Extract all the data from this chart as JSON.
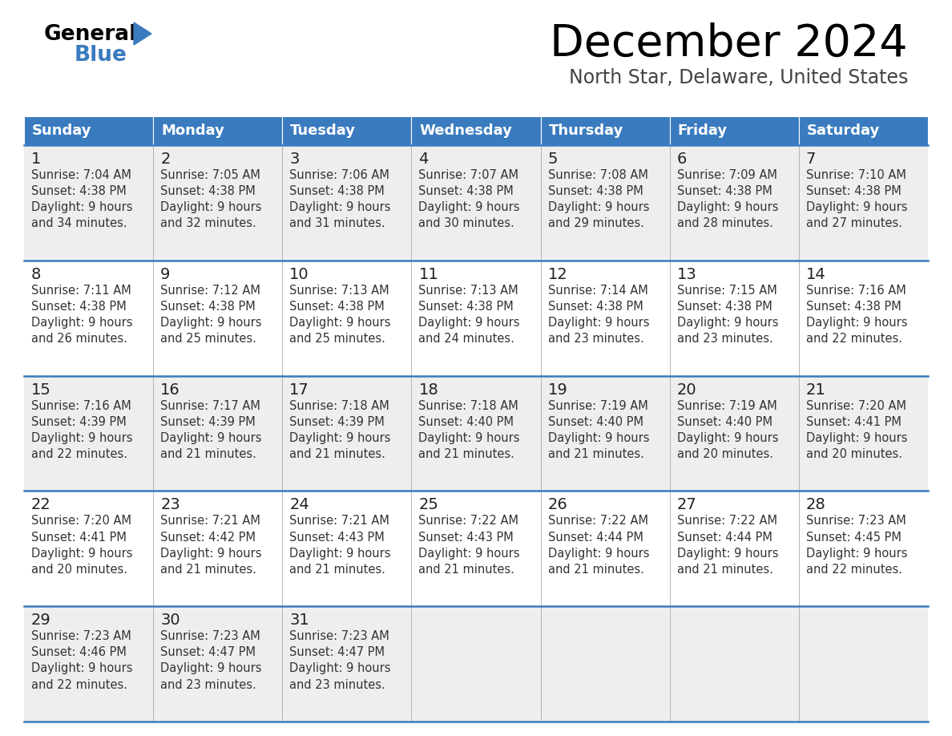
{
  "title": "December 2024",
  "subtitle": "North Star, Delaware, United States",
  "header_bg_color": "#3a7bbf",
  "header_text_color": "#ffffff",
  "cell_bg_color_odd": "#eeeeee",
  "cell_bg_color_even": "#ffffff",
  "grid_line_color": "#3a7bbf",
  "separator_line_color": "#aaaaaa",
  "days_of_week": [
    "Sunday",
    "Monday",
    "Tuesday",
    "Wednesday",
    "Thursday",
    "Friday",
    "Saturday"
  ],
  "weeks": [
    [
      {
        "day": 1,
        "sunrise": "7:04 AM",
        "sunset": "4:38 PM",
        "daylight": "9 hours and 34 minutes."
      },
      {
        "day": 2,
        "sunrise": "7:05 AM",
        "sunset": "4:38 PM",
        "daylight": "9 hours and 32 minutes."
      },
      {
        "day": 3,
        "sunrise": "7:06 AM",
        "sunset": "4:38 PM",
        "daylight": "9 hours and 31 minutes."
      },
      {
        "day": 4,
        "sunrise": "7:07 AM",
        "sunset": "4:38 PM",
        "daylight": "9 hours and 30 minutes."
      },
      {
        "day": 5,
        "sunrise": "7:08 AM",
        "sunset": "4:38 PM",
        "daylight": "9 hours and 29 minutes."
      },
      {
        "day": 6,
        "sunrise": "7:09 AM",
        "sunset": "4:38 PM",
        "daylight": "9 hours and 28 minutes."
      },
      {
        "day": 7,
        "sunrise": "7:10 AM",
        "sunset": "4:38 PM",
        "daylight": "9 hours and 27 minutes."
      }
    ],
    [
      {
        "day": 8,
        "sunrise": "7:11 AM",
        "sunset": "4:38 PM",
        "daylight": "9 hours and 26 minutes."
      },
      {
        "day": 9,
        "sunrise": "7:12 AM",
        "sunset": "4:38 PM",
        "daylight": "9 hours and 25 minutes."
      },
      {
        "day": 10,
        "sunrise": "7:13 AM",
        "sunset": "4:38 PM",
        "daylight": "9 hours and 25 minutes."
      },
      {
        "day": 11,
        "sunrise": "7:13 AM",
        "sunset": "4:38 PM",
        "daylight": "9 hours and 24 minutes."
      },
      {
        "day": 12,
        "sunrise": "7:14 AM",
        "sunset": "4:38 PM",
        "daylight": "9 hours and 23 minutes."
      },
      {
        "day": 13,
        "sunrise": "7:15 AM",
        "sunset": "4:38 PM",
        "daylight": "9 hours and 23 minutes."
      },
      {
        "day": 14,
        "sunrise": "7:16 AM",
        "sunset": "4:38 PM",
        "daylight": "9 hours and 22 minutes."
      }
    ],
    [
      {
        "day": 15,
        "sunrise": "7:16 AM",
        "sunset": "4:39 PM",
        "daylight": "9 hours and 22 minutes."
      },
      {
        "day": 16,
        "sunrise": "7:17 AM",
        "sunset": "4:39 PM",
        "daylight": "9 hours and 21 minutes."
      },
      {
        "day": 17,
        "sunrise": "7:18 AM",
        "sunset": "4:39 PM",
        "daylight": "9 hours and 21 minutes."
      },
      {
        "day": 18,
        "sunrise": "7:18 AM",
        "sunset": "4:40 PM",
        "daylight": "9 hours and 21 minutes."
      },
      {
        "day": 19,
        "sunrise": "7:19 AM",
        "sunset": "4:40 PM",
        "daylight": "9 hours and 21 minutes."
      },
      {
        "day": 20,
        "sunrise": "7:19 AM",
        "sunset": "4:40 PM",
        "daylight": "9 hours and 20 minutes."
      },
      {
        "day": 21,
        "sunrise": "7:20 AM",
        "sunset": "4:41 PM",
        "daylight": "9 hours and 20 minutes."
      }
    ],
    [
      {
        "day": 22,
        "sunrise": "7:20 AM",
        "sunset": "4:41 PM",
        "daylight": "9 hours and 20 minutes."
      },
      {
        "day": 23,
        "sunrise": "7:21 AM",
        "sunset": "4:42 PM",
        "daylight": "9 hours and 21 minutes."
      },
      {
        "day": 24,
        "sunrise": "7:21 AM",
        "sunset": "4:43 PM",
        "daylight": "9 hours and 21 minutes."
      },
      {
        "day": 25,
        "sunrise": "7:22 AM",
        "sunset": "4:43 PM",
        "daylight": "9 hours and 21 minutes."
      },
      {
        "day": 26,
        "sunrise": "7:22 AM",
        "sunset": "4:44 PM",
        "daylight": "9 hours and 21 minutes."
      },
      {
        "day": 27,
        "sunrise": "7:22 AM",
        "sunset": "4:44 PM",
        "daylight": "9 hours and 21 minutes."
      },
      {
        "day": 28,
        "sunrise": "7:23 AM",
        "sunset": "4:45 PM",
        "daylight": "9 hours and 22 minutes."
      }
    ],
    [
      {
        "day": 29,
        "sunrise": "7:23 AM",
        "sunset": "4:46 PM",
        "daylight": "9 hours and 22 minutes."
      },
      {
        "day": 30,
        "sunrise": "7:23 AM",
        "sunset": "4:47 PM",
        "daylight": "9 hours and 23 minutes."
      },
      {
        "day": 31,
        "sunrise": "7:23 AM",
        "sunset": "4:47 PM",
        "daylight": "9 hours and 23 minutes."
      },
      null,
      null,
      null,
      null
    ]
  ],
  "logo_text_general": "General",
  "logo_text_blue": "Blue",
  "logo_triangle_color": "#3a7bbf",
  "title_fontsize": 40,
  "subtitle_fontsize": 17,
  "header_fontsize": 13,
  "day_number_fontsize": 14,
  "cell_text_fontsize": 10.5
}
